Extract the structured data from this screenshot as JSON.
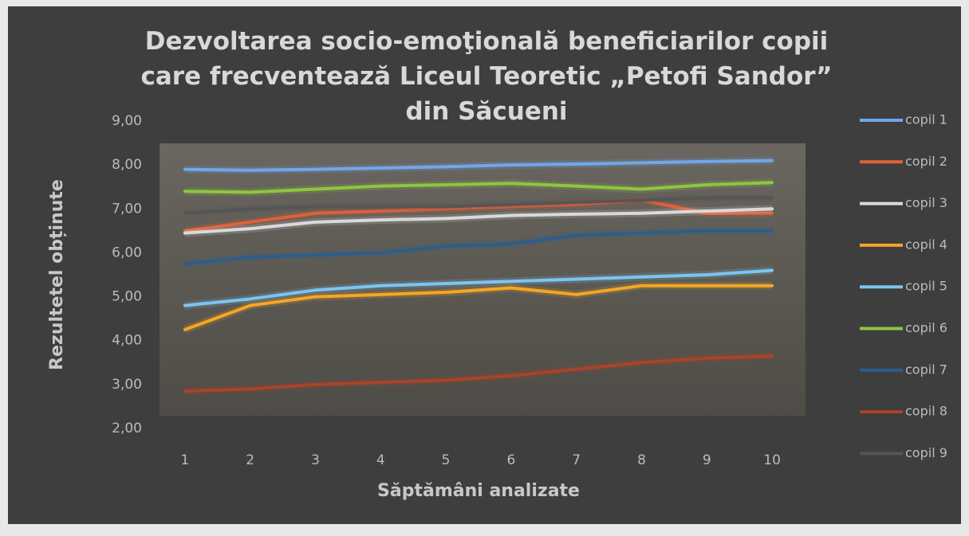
{
  "chart_data": {
    "type": "line",
    "title": "Dezvoltarea socio-emoţională beneficiarilor copii care frecventează Liceul Teoretic „Petofi Sandor” din Săcueni",
    "x_label": "Săptămâni analizate",
    "y_label": "Rezultetel obținute",
    "categories": [
      "1",
      "2",
      "3",
      "4",
      "5",
      "6",
      "7",
      "8",
      "9",
      "10"
    ],
    "ylim": [
      2,
      9
    ],
    "yticks": [
      {
        "value": 2,
        "label": "2,00"
      },
      {
        "value": 3,
        "label": "3,00"
      },
      {
        "value": 4,
        "label": "4,00"
      },
      {
        "value": 5,
        "label": "5,00"
      },
      {
        "value": 6,
        "label": "6,00"
      },
      {
        "value": 7,
        "label": "7,00"
      },
      {
        "value": 8,
        "label": "8,00"
      },
      {
        "value": 9,
        "label": "9,00"
      }
    ],
    "legend": "right",
    "series": [
      {
        "name": "copil 1",
        "color": "#6fa8e8",
        "values": [
          7.9,
          7.88,
          7.9,
          7.93,
          7.96,
          8.0,
          8.02,
          8.05,
          8.08,
          8.1
        ]
      },
      {
        "name": "copil 2",
        "color": "#e0603a",
        "values": [
          6.5,
          6.7,
          6.9,
          6.95,
          7.0,
          7.05,
          7.1,
          7.2,
          6.9,
          6.9
        ]
      },
      {
        "name": "copil 3",
        "color": "#d9d9d9",
        "values": [
          6.45,
          6.55,
          6.7,
          6.75,
          6.78,
          6.85,
          6.88,
          6.9,
          6.95,
          7.0
        ]
      },
      {
        "name": "copil 4",
        "color": "#f5a623",
        "values": [
          4.25,
          4.8,
          5.0,
          5.05,
          5.1,
          5.2,
          5.05,
          5.25,
          5.25,
          5.25
        ]
      },
      {
        "name": "copil 5",
        "color": "#7cc4f0",
        "values": [
          4.8,
          4.95,
          5.15,
          5.25,
          5.3,
          5.35,
          5.4,
          5.45,
          5.5,
          5.6
        ]
      },
      {
        "name": "copil 6",
        "color": "#8cc63f",
        "values": [
          7.4,
          7.38,
          7.45,
          7.52,
          7.55,
          7.58,
          7.52,
          7.45,
          7.55,
          7.6
        ]
      },
      {
        "name": "copil 7",
        "color": "#2e5d8c",
        "values": [
          5.75,
          5.9,
          5.95,
          6.0,
          6.15,
          6.2,
          6.4,
          6.45,
          6.5,
          6.5
        ]
      },
      {
        "name": "copil 8",
        "color": "#a8432a",
        "values": [
          2.85,
          2.9,
          3.0,
          3.05,
          3.1,
          3.2,
          3.35,
          3.5,
          3.6,
          3.65
        ]
      },
      {
        "name": "copil 9",
        "color": "#555555",
        "values": [
          6.9,
          7.0,
          7.05,
          7.05,
          7.05,
          7.1,
          7.15,
          7.2,
          7.25,
          7.25
        ]
      }
    ]
  }
}
